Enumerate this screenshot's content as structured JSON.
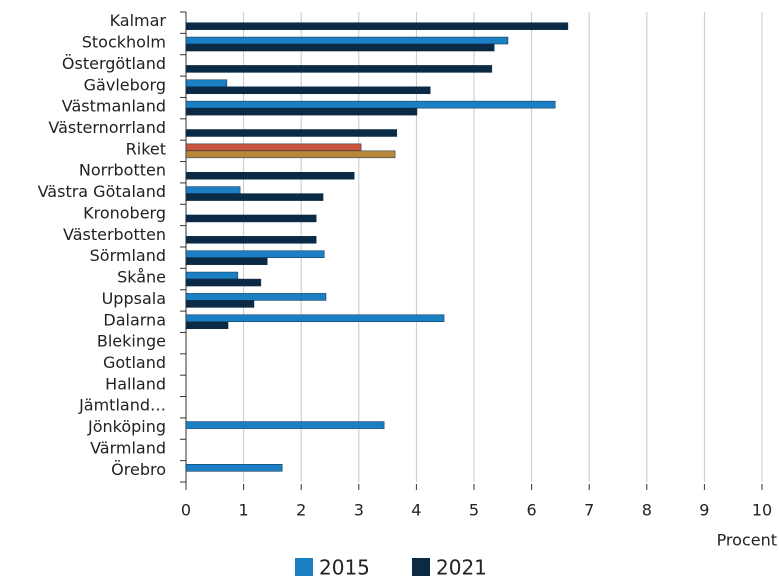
{
  "chart_data": {
    "type": "bar",
    "orientation": "horizontal",
    "categories": [
      "Kalmar",
      "Stockholm",
      "Östergötland",
      "Gävleborg",
      "Västmanland",
      "Västernorrland",
      "Riket",
      "Norrbotten",
      "Västra Götaland",
      "Kronoberg",
      "Västerbotten",
      "Sörmland",
      "Skåne",
      "Uppsala",
      "Dalarna",
      "Blekinge",
      "Gotland",
      "Halland",
      "Jämtland…",
      "Jönköping",
      "Värmland",
      "Örebro"
    ],
    "series": [
      {
        "name": "2015",
        "color": "#1a7fc3",
        "colors": [
          "#1a7fc3",
          "#1a7fc3",
          "#1a7fc3",
          "#1a7fc3",
          "#1a7fc3",
          "#1a7fc3",
          "#c8553c",
          "#1a7fc3",
          "#1a7fc3",
          "#1a7fc3",
          "#1a7fc3",
          "#1a7fc3",
          "#1a7fc3",
          "#1a7fc3",
          "#1a7fc3",
          "#1a7fc3",
          "#1a7fc3",
          "#1a7fc3",
          "#1a7fc3",
          "#1a7fc3",
          "#1a7fc3",
          "#1a7fc3"
        ],
        "values": [
          null,
          5.59,
          null,
          0.71,
          6.41,
          null,
          3.04,
          null,
          0.94,
          null,
          null,
          2.4,
          0.9,
          2.43,
          4.48,
          null,
          null,
          null,
          null,
          3.44,
          null,
          1.67
        ]
      },
      {
        "name": "2021",
        "color": "#0b2a45",
        "colors": [
          "#0b2a45",
          "#0b2a45",
          "#0b2a45",
          "#0b2a45",
          "#0b2a45",
          "#0b2a45",
          "#b8873c",
          "#0b2a45",
          "#0b2a45",
          "#0b2a45",
          "#0b2a45",
          "#0b2a45",
          "#0b2a45",
          "#0b2a45",
          "#0b2a45",
          "#0b2a45",
          "#0b2a45",
          "#0b2a45",
          "#0b2a45",
          "#0b2a45",
          "#0b2a45",
          "#0b2a45"
        ],
        "values": [
          6.63,
          5.35,
          5.31,
          4.24,
          4.01,
          3.66,
          3.63,
          2.92,
          2.38,
          2.26,
          2.26,
          1.41,
          1.3,
          1.18,
          0.73,
          null,
          null,
          null,
          null,
          null,
          null,
          null
        ]
      }
    ],
    "x_label": "Procent",
    "xlim": [
      0,
      10
    ],
    "xticks": [
      0,
      1,
      2,
      3,
      4,
      5,
      6,
      7,
      8,
      9,
      10
    ],
    "grid": true,
    "legend": "bottom"
  }
}
